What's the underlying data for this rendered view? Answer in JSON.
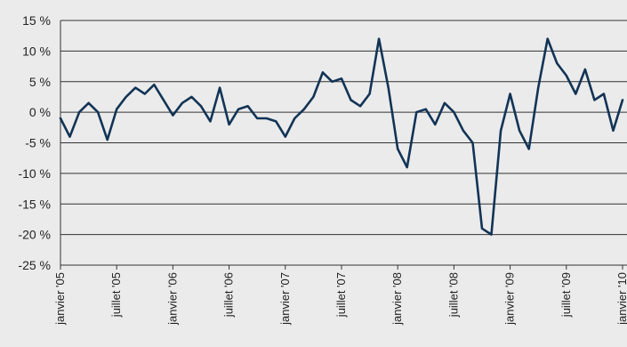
{
  "chart_data": {
    "type": "line",
    "title": "",
    "xlabel": "",
    "ylabel": "",
    "ylim": [
      -25,
      15
    ],
    "y_ticks": [
      15,
      10,
      5,
      0,
      -5,
      -10,
      -15,
      -20,
      -25
    ],
    "y_tick_labels": [
      "15 %",
      "10 %",
      "5 %",
      "0 %",
      "-5 %",
      "-10 %",
      "-15 %",
      "-20 %",
      "-25 %"
    ],
    "x_tick_labels": [
      "janvier '05",
      "juillet '05",
      "janvier '06",
      "juillet '06",
      "janvier '07",
      "juillet '07",
      "janvier '08",
      "juillet '08",
      "janvier '09",
      "juillet '09",
      "janvier '10"
    ],
    "x_range": [
      "2005-01",
      "2010-01"
    ],
    "grid": "horizontal",
    "legend": "none",
    "line_color": "#123456",
    "series": [
      {
        "x": [
          "2005-01",
          "2005-02",
          "2005-03",
          "2005-04",
          "2005-05",
          "2005-06",
          "2005-07",
          "2005-08",
          "2005-09",
          "2005-10",
          "2005-11",
          "2005-12",
          "2006-01",
          "2006-02",
          "2006-03",
          "2006-04",
          "2006-05",
          "2006-06",
          "2006-07",
          "2006-08",
          "2006-09",
          "2006-10",
          "2006-11",
          "2006-12",
          "2007-01",
          "2007-02",
          "2007-03",
          "2007-04",
          "2007-05",
          "2007-06",
          "2007-07",
          "2007-08",
          "2007-09",
          "2007-10",
          "2007-11",
          "2007-12",
          "2008-01",
          "2008-02",
          "2008-03",
          "2008-04",
          "2008-05",
          "2008-06",
          "2008-07",
          "2008-08",
          "2008-09",
          "2008-10",
          "2008-11",
          "2008-12",
          "2009-01",
          "2009-02",
          "2009-03",
          "2009-04",
          "2009-05",
          "2009-06",
          "2009-07",
          "2009-08",
          "2009-09",
          "2009-10",
          "2009-11",
          "2009-12",
          "2010-01"
        ],
        "values": [
          -1,
          -4,
          0,
          1.5,
          0,
          -4.5,
          0.5,
          2.5,
          4,
          3,
          4.5,
          2,
          -0.5,
          1.5,
          2.5,
          1,
          -1.5,
          4,
          -2,
          0.5,
          1,
          -1,
          -1,
          -1.5,
          -4,
          -1,
          0.5,
          2.5,
          6.5,
          5,
          5.5,
          2,
          1,
          3,
          12,
          4,
          -6,
          -9,
          0,
          0.5,
          -2,
          1.5,
          0,
          -3,
          -5,
          -19,
          -20,
          -3,
          3,
          -3,
          -6,
          4,
          12,
          8,
          6,
          3,
          7,
          2,
          3,
          -3,
          2
        ]
      }
    ]
  }
}
